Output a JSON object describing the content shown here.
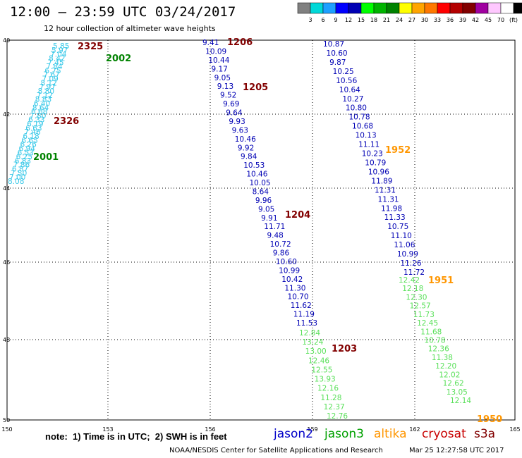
{
  "header": {
    "title": "12:00 – 23:59 UTC 03/24/2017",
    "subtitle": "12 hour collection of altimeter wave heights"
  },
  "colorbar": {
    "colors": [
      "#808080",
      "#00d8d8",
      "#1ea0ff",
      "#0000ff",
      "#0000b4",
      "#00ff00",
      "#00b400",
      "#008200",
      "#ffff00",
      "#ffa500",
      "#ff7800",
      "#ff0000",
      "#b40000",
      "#820000",
      "#a000a0",
      "#ffc8ff",
      "#ffffff",
      "#000000"
    ],
    "labels": [
      "3",
      "6",
      "9",
      "12",
      "15",
      "18",
      "21",
      "24",
      "27",
      "30",
      "33",
      "36",
      "39",
      "42",
      "45",
      "70",
      "(ft)"
    ]
  },
  "map": {
    "lon_ticks": [
      "150",
      "153",
      "156",
      "159",
      "162",
      "165"
    ],
    "lat_ticks": [
      "40",
      "42",
      "44",
      "46",
      "48",
      "50"
    ]
  },
  "passes": [
    {
      "name": "s3a-2325",
      "color": "#0a0a0a",
      "pts": []
    }
  ],
  "tracks": [
    {
      "sat": "jason2",
      "color": "#0000b4",
      "values": [
        "10.87",
        "10.60",
        "9.87",
        "10.25",
        "10.56",
        "10.64",
        "10.27",
        "10.80",
        "10.78",
        "10.68",
        "10.13",
        "11.11",
        "10.23",
        "10.79",
        "10.96",
        "11.89",
        "11.31",
        "11.31",
        "11.98",
        "11.33",
        "10.75",
        "11.10",
        "11.06",
        "10.99",
        "11.26",
        "11.72"
      ]
    },
    {
      "sat": "jason2",
      "color": "#0000b4",
      "values": [
        "9.41",
        "10.09",
        "10.44",
        "9.17",
        "9.05",
        "9.13",
        "9.52",
        "9.69",
        "9.64",
        "9.93",
        "9.63",
        "10.46",
        "9.92",
        "9.84",
        "10.53",
        "10.46",
        "10.05",
        "8.64",
        "9.96",
        "9.05",
        "9.91",
        "11.71",
        "9.48",
        "10.72",
        "9.86",
        "10.60",
        "10.99",
        "10.42",
        "11.30",
        "10.70",
        "11.62",
        "11.19",
        "11.53"
      ]
    },
    {
      "sat": "jason3",
      "color": "#5ae05a",
      "values": [
        "12.84",
        "13.24",
        "13.00",
        "12.46",
        "12.55",
        "13.93",
        "12.16",
        "11.28",
        "12.37",
        "12.76"
      ]
    },
    {
      "sat": "jason3",
      "color": "#5ae05a",
      "values": [
        "12.42",
        "12.18",
        "12.30",
        "12.57",
        "11.73",
        "12.45",
        "11.68",
        "10.78",
        "12.36",
        "11.38",
        "12.20",
        "12.02",
        "12.62",
        "13.05",
        "12.14"
      ]
    },
    {
      "sat": "cryosat",
      "color": "#38c8e8",
      "values": [
        "5.85",
        "5.97",
        "7.04",
        "8.42",
        "7.45",
        "7.84",
        "6.75",
        "7.67",
        "7.09",
        "8.12",
        "7.97",
        "8.80",
        "7.12",
        "8.83",
        "6.40",
        "8.64",
        "6.68",
        "7.80",
        "6.33",
        "6.19",
        "6.63",
        "7.46",
        "6.18",
        "6.65",
        "6.26",
        "6.94",
        "6.53",
        "6.25",
        "6.83",
        "7.86",
        "6.87",
        "7.50",
        "7.00",
        "8.08"
      ]
    }
  ],
  "pass_labels": [
    {
      "text": "1206",
      "color": "#820000"
    },
    {
      "text": "1205",
      "color": "#820000"
    },
    {
      "text": "1204",
      "color": "#820000"
    },
    {
      "text": "1203",
      "color": "#820000"
    },
    {
      "text": "2325",
      "color": "#820000"
    },
    {
      "text": "2326",
      "color": "#820000"
    },
    {
      "text": "2002",
      "color": "#008200"
    },
    {
      "text": "2001",
      "color": "#008200"
    },
    {
      "text": "1952",
      "color": "#ff9600"
    },
    {
      "text": "1951",
      "color": "#ff9600"
    },
    {
      "text": "1950",
      "color": "#ff9600"
    }
  ],
  "note": "note:  1) Time is in UTC;  2) SWH is in feet",
  "legend": [
    {
      "text": "jason2",
      "color": "#0000c8"
    },
    {
      "text": "jason3",
      "color": "#00a000"
    },
    {
      "text": "altika",
      "color": "#ff9600"
    },
    {
      "text": "cryosat",
      "color": "#c80000"
    },
    {
      "text": "s3a",
      "color": "#820000"
    }
  ],
  "footer": {
    "left": "NOAA/NESDIS Center for Satellite Applications and Research",
    "right": "Mar 25 12:27:58 UTC 2017"
  }
}
